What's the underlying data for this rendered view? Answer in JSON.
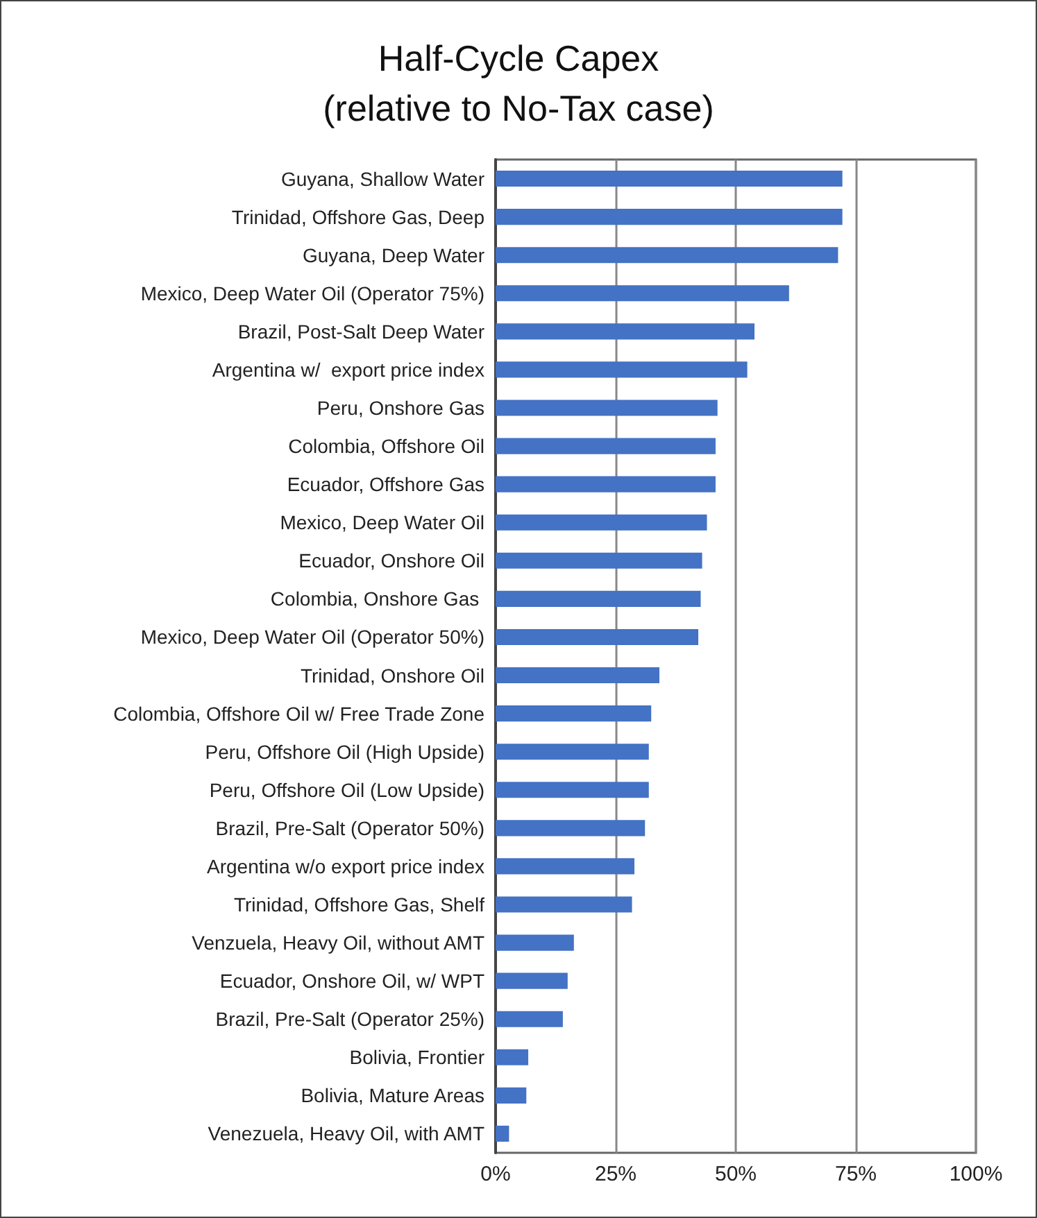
{
  "chart_data": {
    "type": "bar",
    "orientation": "horizontal",
    "title": "Half-Cycle Capex\n(relative to No-Tax case)",
    "categories": [
      "Guyana, Shallow Water",
      "Trinidad, Offshore Gas, Deep",
      "Guyana, Deep Water",
      "Mexico, Deep Water Oil (Operator 75%)",
      "Brazil, Post-Salt Deep Water",
      "Argentina w/  export price index",
      "Peru, Onshore Gas",
      "Colombia, Offshore Oil",
      "Ecuador, Offshore Gas",
      "Mexico, Deep Water Oil",
      "Ecuador, Onshore Oil",
      "Colombia, Onshore Gas ",
      "Mexico, Deep Water Oil (Operator 50%)",
      "Trinidad, Onshore Oil",
      "Colombia, Offshore Oil w/ Free Trade Zone",
      "Peru, Offshore Oil (High Upside)",
      "Peru, Offshore Oil (Low Upside)",
      "Brazil, Pre-Salt (Operator 50%)",
      "Argentina w/o export price index",
      "Trinidad, Offshore Gas, Shelf",
      "Venzuela, Heavy Oil, without AMT",
      "Ecuador, Onshore Oil, w/ WPT",
      "Brazil, Pre-Salt (Operator 25%)",
      "Bolivia, Frontier",
      "Bolivia, Mature Areas",
      "Venezuela, Heavy Oil, with AMT"
    ],
    "values": [
      72.2,
      72.2,
      71.3,
      61.1,
      53.9,
      52.4,
      46.2,
      45.8,
      45.8,
      44,
      43,
      42.7,
      42.2,
      34.1,
      32.4,
      31.9,
      31.9,
      31.1,
      28.9,
      28.4,
      16.3,
      15,
      14,
      6.8,
      6.4,
      2.8
    ],
    "color": "#4472c4",
    "xlim": [
      0,
      100
    ],
    "xticks": [
      {
        "value": 0,
        "label": "0%"
      },
      {
        "value": 25,
        "label": "25%"
      },
      {
        "value": 50,
        "label": "50%"
      },
      {
        "value": 75,
        "label": "75%"
      },
      {
        "value": 100,
        "label": "100%"
      }
    ],
    "grid": "x"
  }
}
